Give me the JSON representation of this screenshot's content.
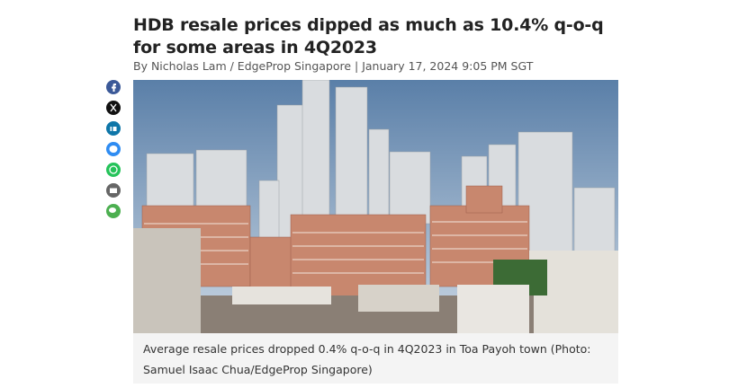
{
  "article": {
    "title": "HDB resale prices dipped as much as 10.4% q-o-q for some areas in 4Q2023",
    "byline": "By Nicholas Lam / EdgeProp Singapore | January 17, 2024 9:05 PM SGT",
    "caption": "Average resale prices dropped 0.4% q-o-q in 4Q2023 in Toa Payoh town (Photo: Samuel Isaac Chua/EdgeProp Singapore)"
  }
}
